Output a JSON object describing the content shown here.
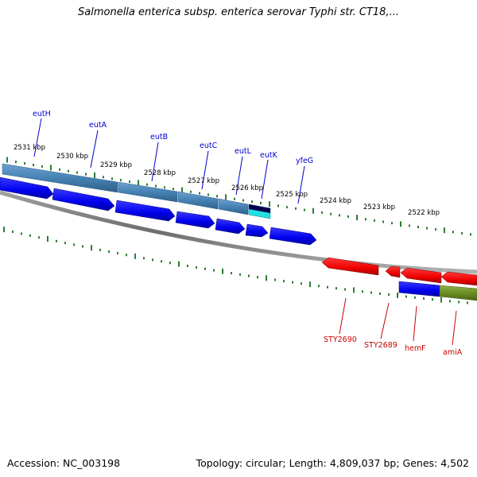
{
  "title": "Salmonella enterica subsp. enterica serovar Typhi str. CT18,...",
  "accession_text": "Accession: NC_003198",
  "summary_text": "Topology: circular; Length: 4,809,037 bp; Genes: 4,502",
  "colors": {
    "backbone": "#808080",
    "tick": "#2e7d32",
    "forward_gene": "#0000ee",
    "reverse_gene": "#ee0000",
    "cds_forward": "#4682b4",
    "cds_highlight": "#20e0e0",
    "cds_reverse": "#6b8e23",
    "label_forward": "#0000cc",
    "label_reverse": "#cc0000"
  },
  "ruler_labels": [
    "2531 kbp",
    "2530 kbp",
    "2529 kbp",
    "2528 kbp",
    "2527 kbp",
    "2526 kbp",
    "2525 kbp",
    "2524 kbp",
    "2523 kbp",
    "2522 kbp"
  ],
  "forward_genes": [
    "eutH",
    "eutA",
    "eutB",
    "eutC",
    "eutL",
    "eutK",
    "yfeG"
  ],
  "reverse_genes": [
    "STY2690",
    "STY2689",
    "hemF",
    "amiA"
  ]
}
